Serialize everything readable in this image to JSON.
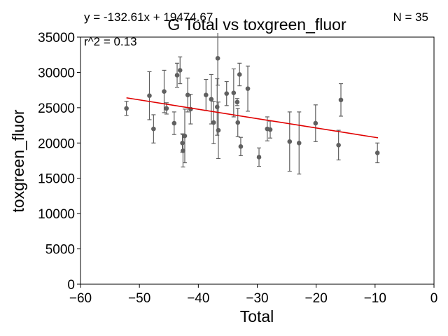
{
  "chart_data": {
    "type": "scatter",
    "title": "G Total vs toxgreen_fluor",
    "xlabel": "Total",
    "ylabel": "toxgreen_fluor",
    "xlim": [
      -60,
      0
    ],
    "ylim": [
      0,
      35000
    ],
    "x_ticks": [
      -60,
      -50,
      -40,
      -30,
      -20,
      -10,
      0
    ],
    "x_tick_labels": [
      "−60",
      "−50",
      "−40",
      "−30",
      "−20",
      "−10",
      "0"
    ],
    "y_ticks": [
      0,
      5000,
      10000,
      15000,
      20000,
      25000,
      30000,
      35000
    ],
    "y_tick_labels": [
      "0",
      "5000",
      "10000",
      "15000",
      "20000",
      "25000",
      "30000",
      "35000"
    ],
    "grid": false,
    "annotations": {
      "equation": "y = -132.61x + 19474.67",
      "r_squared": "r^2 = 0.13",
      "n": "N = 35"
    },
    "regression": {
      "slope": -132.61,
      "intercept": 19474.67,
      "x_range": [
        -52.2,
        -9.5
      ]
    },
    "colors": {
      "points": "#606060",
      "errorbars": "#606060",
      "fit_line": "#e00000"
    },
    "points": [
      {
        "x": -52.2,
        "y": 24900,
        "err": 1000
      },
      {
        "x": -48.3,
        "y": 26700,
        "err": 3400
      },
      {
        "x": -47.6,
        "y": 22000,
        "err": 2000
      },
      {
        "x": -45.8,
        "y": 27300,
        "err": 3000
      },
      {
        "x": -45.4,
        "y": 24900,
        "err": 800
      },
      {
        "x": -44.1,
        "y": 22800,
        "err": 1600
      },
      {
        "x": -43.6,
        "y": 29600,
        "err": 1700
      },
      {
        "x": -43.1,
        "y": 30300,
        "err": 1900
      },
      {
        "x": -42.7,
        "y": 20000,
        "err": 1300
      },
      {
        "x": -42.6,
        "y": 18900,
        "err": 2300
      },
      {
        "x": -42.3,
        "y": 21000,
        "err": 3800
      },
      {
        "x": -41.8,
        "y": 26800,
        "err": 2400
      },
      {
        "x": -41.3,
        "y": 24800,
        "err": 2100
      },
      {
        "x": -38.7,
        "y": 26800,
        "err": 2200
      },
      {
        "x": -37.8,
        "y": 26200,
        "err": 3500
      },
      {
        "x": -37.4,
        "y": 22900,
        "err": 3000
      },
      {
        "x": -36.8,
        "y": 25100,
        "err": 4000
      },
      {
        "x": -36.6,
        "y": 21800,
        "err": 4000
      },
      {
        "x": -36.7,
        "y": 32000,
        "err": 3800
      },
      {
        "x": -35.2,
        "y": 27000,
        "err": 1700
      },
      {
        "x": -34.0,
        "y": 27100,
        "err": 3400
      },
      {
        "x": -33.4,
        "y": 25800,
        "err": 500
      },
      {
        "x": -33.3,
        "y": 22900,
        "err": 2000
      },
      {
        "x": -33.0,
        "y": 29700,
        "err": 1600
      },
      {
        "x": -32.8,
        "y": 19500,
        "err": 1300
      },
      {
        "x": -31.6,
        "y": 27700,
        "err": 3200
      },
      {
        "x": -29.7,
        "y": 18000,
        "err": 1300
      },
      {
        "x": -28.3,
        "y": 22000,
        "err": 1700
      },
      {
        "x": -27.8,
        "y": 21900,
        "err": 1200
      },
      {
        "x": -24.5,
        "y": 20200,
        "err": 4200
      },
      {
        "x": -22.9,
        "y": 20000,
        "err": 4400
      },
      {
        "x": -20.1,
        "y": 22800,
        "err": 2600
      },
      {
        "x": -16.2,
        "y": 19700,
        "err": 2100
      },
      {
        "x": -15.8,
        "y": 26100,
        "err": 2300
      },
      {
        "x": -9.6,
        "y": 18600,
        "err": 1400
      }
    ]
  }
}
